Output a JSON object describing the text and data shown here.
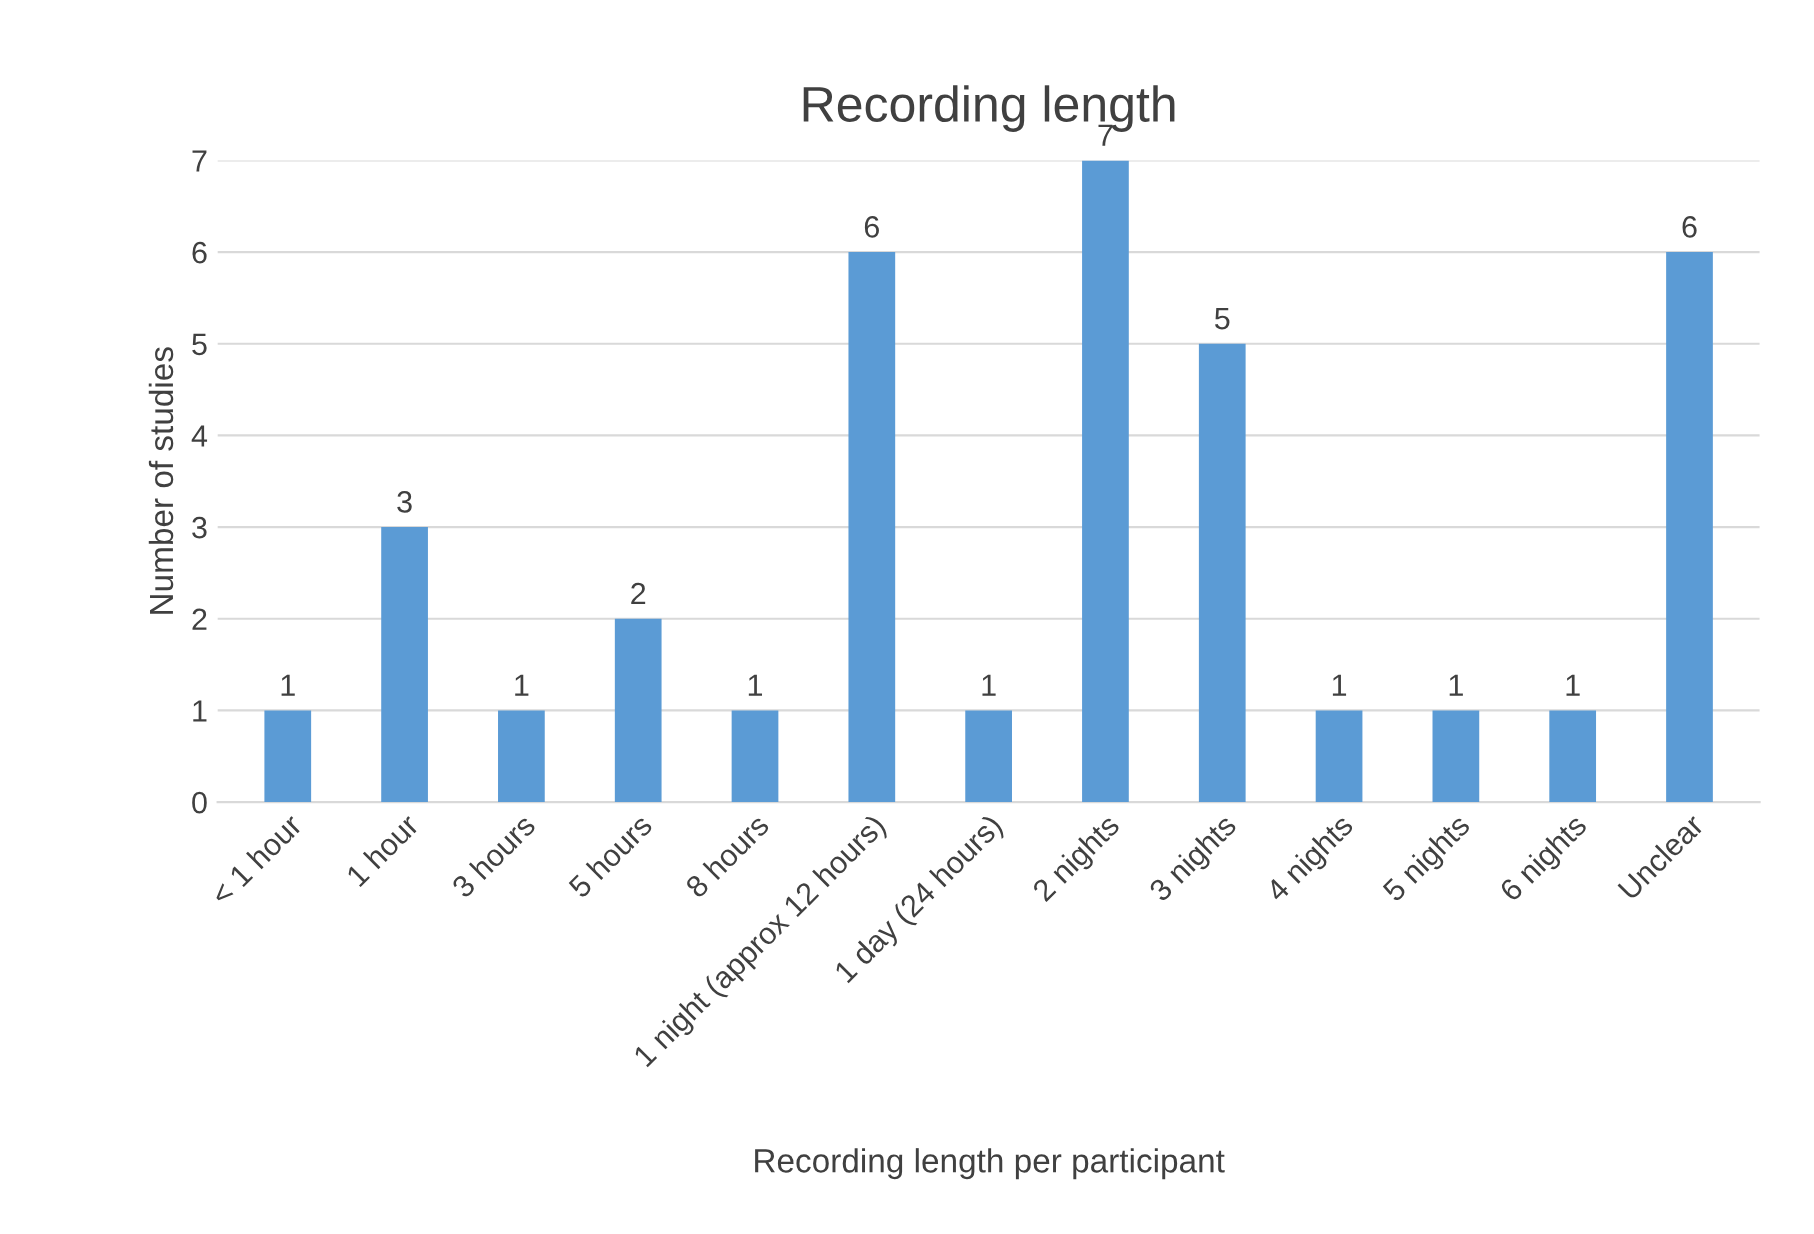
{
  "chart_data": {
    "type": "bar",
    "title": "Recording length",
    "xlabel": "Recording length per participant",
    "ylabel": "Number of studies",
    "categories": [
      "< 1 hour",
      "1 hour",
      "3 hours",
      "5 hours",
      "8 hours",
      "1 night (approx 12 hours)",
      "1 day (24 hours)",
      "2 nights",
      "3 nights",
      "4 nights",
      "5 nights",
      "6 nights",
      "Unclear"
    ],
    "values": [
      1,
      3,
      1,
      2,
      1,
      6,
      1,
      7,
      5,
      1,
      1,
      1,
      6
    ],
    "color": "#5b9bd5",
    "ylim": [
      0,
      7
    ],
    "yticks": [
      0,
      1,
      2,
      3,
      4,
      5,
      6,
      7
    ],
    "grid": "y",
    "data_labels": true
  }
}
